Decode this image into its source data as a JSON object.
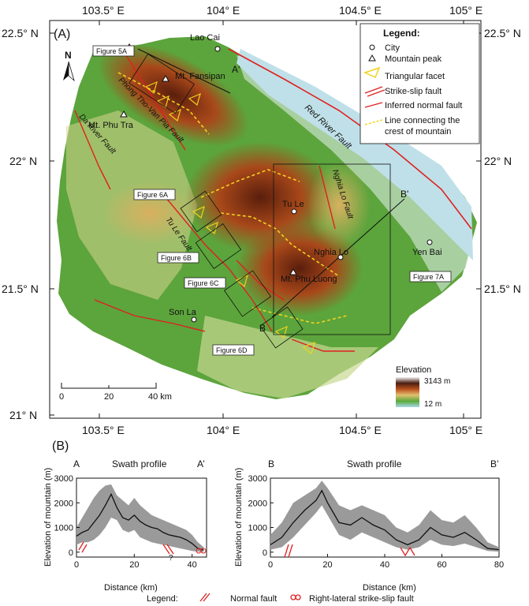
{
  "panel_a": {
    "label": "(A)",
    "lon_top": [
      "103.5° E",
      "104° E",
      "104.5° E",
      "105° E"
    ],
    "lon_bottom": [
      "103.5° E",
      "104° E",
      "104.5° E",
      "105° E"
    ],
    "lat_left": [
      "22.5° N",
      "22° N",
      "21.5° N",
      "21° N"
    ],
    "lat_right": [
      "22.5° N",
      "22° N",
      "21.5° N"
    ],
    "north": "N",
    "cities": [
      "Lao Cai",
      "Tu Le",
      "Nghia Lo",
      "Yen Bai",
      "Son La"
    ],
    "peaks": [
      "Mt. Fansipan",
      "Mt. Phu Tra",
      "Mt. Phu Luong"
    ],
    "faults": [
      "Red River Fault",
      "Phong Tho-Van Pia Fault",
      "Da River Fault",
      "Nghia Lo Fault",
      "Tu Le Fault"
    ],
    "figure_refs": [
      "Figure 5A",
      "Figure 6A",
      "Figure 6B",
      "Figure 6C",
      "Figure 6D",
      "Figure 7A"
    ],
    "profile_ends": [
      "A",
      "A'",
      "B",
      "B'"
    ],
    "legend": {
      "title": "Legend:",
      "items": [
        "City",
        "Mountain peak",
        "Triangular facet",
        "Strike-slip fault",
        "Inferred normal fault",
        "Line connecting the",
        "crest of mountain"
      ]
    },
    "scale_bar": [
      "0",
      "20",
      "40 km"
    ],
    "elevation": {
      "title": "Elevation",
      "max": "3143 m",
      "min": "12 m"
    }
  },
  "panel_b": {
    "label": "(B)",
    "ylabel": "Elevation of mountain (m)",
    "xlabel": "Distance (km)",
    "left": {
      "title": "Swath profile",
      "start": "A",
      "end": "A’",
      "question": "?"
    },
    "right": {
      "title": "Swath profile",
      "start": "B",
      "end": "B’"
    },
    "legend": {
      "label": "Legend:",
      "normal": "Normal fault",
      "strike_slip": "Right-lateral strike-slip fault"
    }
  },
  "chart_data": [
    {
      "type": "area",
      "title": "Swath profile",
      "xlabel": "Distance (km)",
      "ylabel": "Elevation of mountain (m)",
      "xlim": [
        0,
        45
      ],
      "ylim": [
        -200,
        3000
      ],
      "xticks": [
        0,
        20,
        40
      ],
      "yticks": [
        0,
        1000,
        2000,
        3000
      ],
      "x": [
        0,
        2,
        4,
        6,
        8,
        10,
        12,
        14,
        16,
        18,
        20,
        22,
        24,
        26,
        28,
        30,
        32,
        34,
        36,
        38,
        40,
        42,
        44
      ],
      "mean": [
        650,
        800,
        900,
        1200,
        1500,
        1900,
        2350,
        1800,
        1400,
        1300,
        1500,
        1250,
        1100,
        1000,
        950,
        800,
        700,
        650,
        600,
        500,
        350,
        150,
        80
      ],
      "max": [
        1000,
        1400,
        1800,
        2200,
        2500,
        2700,
        2750,
        2300,
        2100,
        1900,
        2200,
        1900,
        1700,
        1500,
        1400,
        1300,
        1200,
        1100,
        1000,
        900,
        700,
        400,
        200
      ],
      "min": [
        300,
        400,
        400,
        500,
        700,
        1000,
        1400,
        1300,
        900,
        800,
        900,
        600,
        500,
        400,
        350,
        300,
        250,
        200,
        150,
        100,
        50,
        20,
        10
      ]
    },
    {
      "type": "area",
      "title": "Swath profile",
      "xlabel": "Distance (km)",
      "ylabel": "Elevation of mountain (m)",
      "xlim": [
        0,
        80
      ],
      "ylim": [
        -200,
        3000
      ],
      "xticks": [
        0,
        20,
        40,
        60,
        80
      ],
      "yticks": [
        0,
        1000,
        2000,
        3000
      ],
      "x": [
        0,
        4,
        8,
        12,
        16,
        18,
        20,
        24,
        28,
        32,
        36,
        40,
        44,
        48,
        52,
        56,
        60,
        64,
        68,
        72,
        76,
        80
      ],
      "mean": [
        300,
        600,
        1200,
        1700,
        2100,
        2500,
        2000,
        1200,
        1100,
        1400,
        1100,
        900,
        500,
        300,
        500,
        1000,
        700,
        600,
        800,
        500,
        150,
        100
      ],
      "max": [
        700,
        1200,
        2000,
        2300,
        2600,
        2900,
        2600,
        1900,
        1700,
        1900,
        1700,
        1500,
        1000,
        800,
        1100,
        1700,
        1300,
        1200,
        1500,
        1000,
        400,
        200
      ],
      "min": [
        100,
        200,
        600,
        1100,
        1600,
        1900,
        1500,
        700,
        500,
        800,
        600,
        400,
        200,
        100,
        200,
        500,
        300,
        250,
        350,
        200,
        50,
        20
      ]
    }
  ]
}
